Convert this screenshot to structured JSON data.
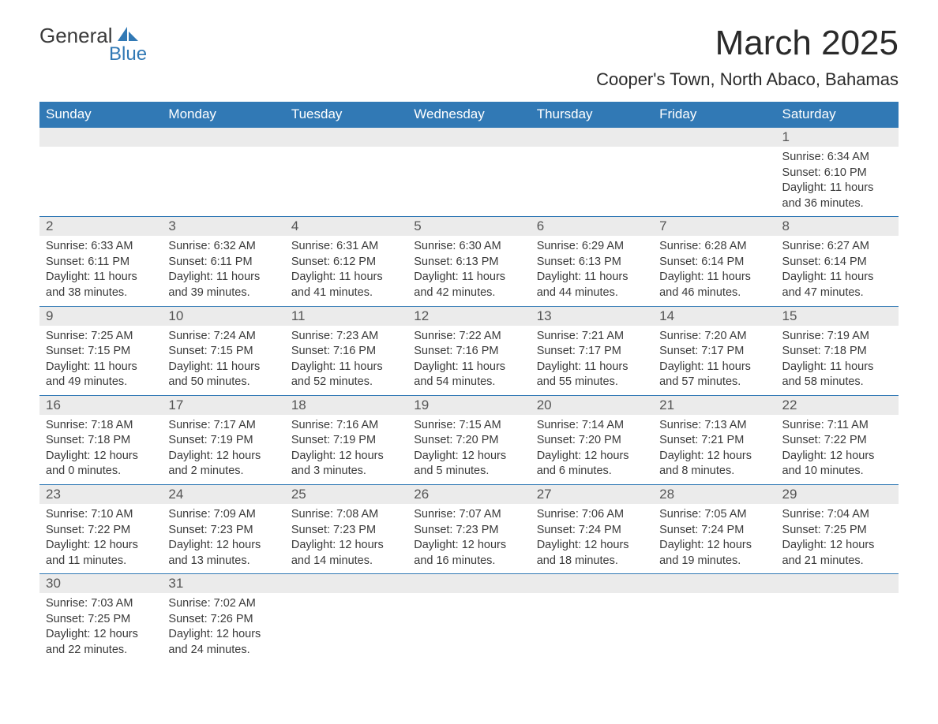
{
  "logo": {
    "text_general": "General",
    "text_blue": "Blue",
    "icon_color": "#3179b5"
  },
  "title": "March 2025",
  "location": "Cooper's Town, North Abaco, Bahamas",
  "header_bg": "#3179b5",
  "header_text": "#ffffff",
  "daynum_bg": "#ebebeb",
  "text_color": "#3a3a3a",
  "border_color": "#3179b5",
  "weekdays": [
    "Sunday",
    "Monday",
    "Tuesday",
    "Wednesday",
    "Thursday",
    "Friday",
    "Saturday"
  ],
  "weeks": [
    [
      null,
      null,
      null,
      null,
      null,
      null,
      {
        "n": "1",
        "sunrise": "6:34 AM",
        "sunset": "6:10 PM",
        "dh": "11",
        "dm": "36"
      }
    ],
    [
      {
        "n": "2",
        "sunrise": "6:33 AM",
        "sunset": "6:11 PM",
        "dh": "11",
        "dm": "38"
      },
      {
        "n": "3",
        "sunrise": "6:32 AM",
        "sunset": "6:11 PM",
        "dh": "11",
        "dm": "39"
      },
      {
        "n": "4",
        "sunrise": "6:31 AM",
        "sunset": "6:12 PM",
        "dh": "11",
        "dm": "41"
      },
      {
        "n": "5",
        "sunrise": "6:30 AM",
        "sunset": "6:13 PM",
        "dh": "11",
        "dm": "42"
      },
      {
        "n": "6",
        "sunrise": "6:29 AM",
        "sunset": "6:13 PM",
        "dh": "11",
        "dm": "44"
      },
      {
        "n": "7",
        "sunrise": "6:28 AM",
        "sunset": "6:14 PM",
        "dh": "11",
        "dm": "46"
      },
      {
        "n": "8",
        "sunrise": "6:27 AM",
        "sunset": "6:14 PM",
        "dh": "11",
        "dm": "47"
      }
    ],
    [
      {
        "n": "9",
        "sunrise": "7:25 AM",
        "sunset": "7:15 PM",
        "dh": "11",
        "dm": "49"
      },
      {
        "n": "10",
        "sunrise": "7:24 AM",
        "sunset": "7:15 PM",
        "dh": "11",
        "dm": "50"
      },
      {
        "n": "11",
        "sunrise": "7:23 AM",
        "sunset": "7:16 PM",
        "dh": "11",
        "dm": "52"
      },
      {
        "n": "12",
        "sunrise": "7:22 AM",
        "sunset": "7:16 PM",
        "dh": "11",
        "dm": "54"
      },
      {
        "n": "13",
        "sunrise": "7:21 AM",
        "sunset": "7:17 PM",
        "dh": "11",
        "dm": "55"
      },
      {
        "n": "14",
        "sunrise": "7:20 AM",
        "sunset": "7:17 PM",
        "dh": "11",
        "dm": "57"
      },
      {
        "n": "15",
        "sunrise": "7:19 AM",
        "sunset": "7:18 PM",
        "dh": "11",
        "dm": "58"
      }
    ],
    [
      {
        "n": "16",
        "sunrise": "7:18 AM",
        "sunset": "7:18 PM",
        "dh": "12",
        "dm": "0"
      },
      {
        "n": "17",
        "sunrise": "7:17 AM",
        "sunset": "7:19 PM",
        "dh": "12",
        "dm": "2"
      },
      {
        "n": "18",
        "sunrise": "7:16 AM",
        "sunset": "7:19 PM",
        "dh": "12",
        "dm": "3"
      },
      {
        "n": "19",
        "sunrise": "7:15 AM",
        "sunset": "7:20 PM",
        "dh": "12",
        "dm": "5"
      },
      {
        "n": "20",
        "sunrise": "7:14 AM",
        "sunset": "7:20 PM",
        "dh": "12",
        "dm": "6"
      },
      {
        "n": "21",
        "sunrise": "7:13 AM",
        "sunset": "7:21 PM",
        "dh": "12",
        "dm": "8"
      },
      {
        "n": "22",
        "sunrise": "7:11 AM",
        "sunset": "7:22 PM",
        "dh": "12",
        "dm": "10"
      }
    ],
    [
      {
        "n": "23",
        "sunrise": "7:10 AM",
        "sunset": "7:22 PM",
        "dh": "12",
        "dm": "11"
      },
      {
        "n": "24",
        "sunrise": "7:09 AM",
        "sunset": "7:23 PM",
        "dh": "12",
        "dm": "13"
      },
      {
        "n": "25",
        "sunrise": "7:08 AM",
        "sunset": "7:23 PM",
        "dh": "12",
        "dm": "14"
      },
      {
        "n": "26",
        "sunrise": "7:07 AM",
        "sunset": "7:23 PM",
        "dh": "12",
        "dm": "16"
      },
      {
        "n": "27",
        "sunrise": "7:06 AM",
        "sunset": "7:24 PM",
        "dh": "12",
        "dm": "18"
      },
      {
        "n": "28",
        "sunrise": "7:05 AM",
        "sunset": "7:24 PM",
        "dh": "12",
        "dm": "19"
      },
      {
        "n": "29",
        "sunrise": "7:04 AM",
        "sunset": "7:25 PM",
        "dh": "12",
        "dm": "21"
      }
    ],
    [
      {
        "n": "30",
        "sunrise": "7:03 AM",
        "sunset": "7:25 PM",
        "dh": "12",
        "dm": "22"
      },
      {
        "n": "31",
        "sunrise": "7:02 AM",
        "sunset": "7:26 PM",
        "dh": "12",
        "dm": "24"
      },
      null,
      null,
      null,
      null,
      null
    ]
  ],
  "labels": {
    "sunrise": "Sunrise:",
    "sunset": "Sunset:",
    "daylight_prefix": "Daylight:",
    "hours_word": "hours",
    "and_word": "and",
    "minutes_word": "minutes."
  }
}
